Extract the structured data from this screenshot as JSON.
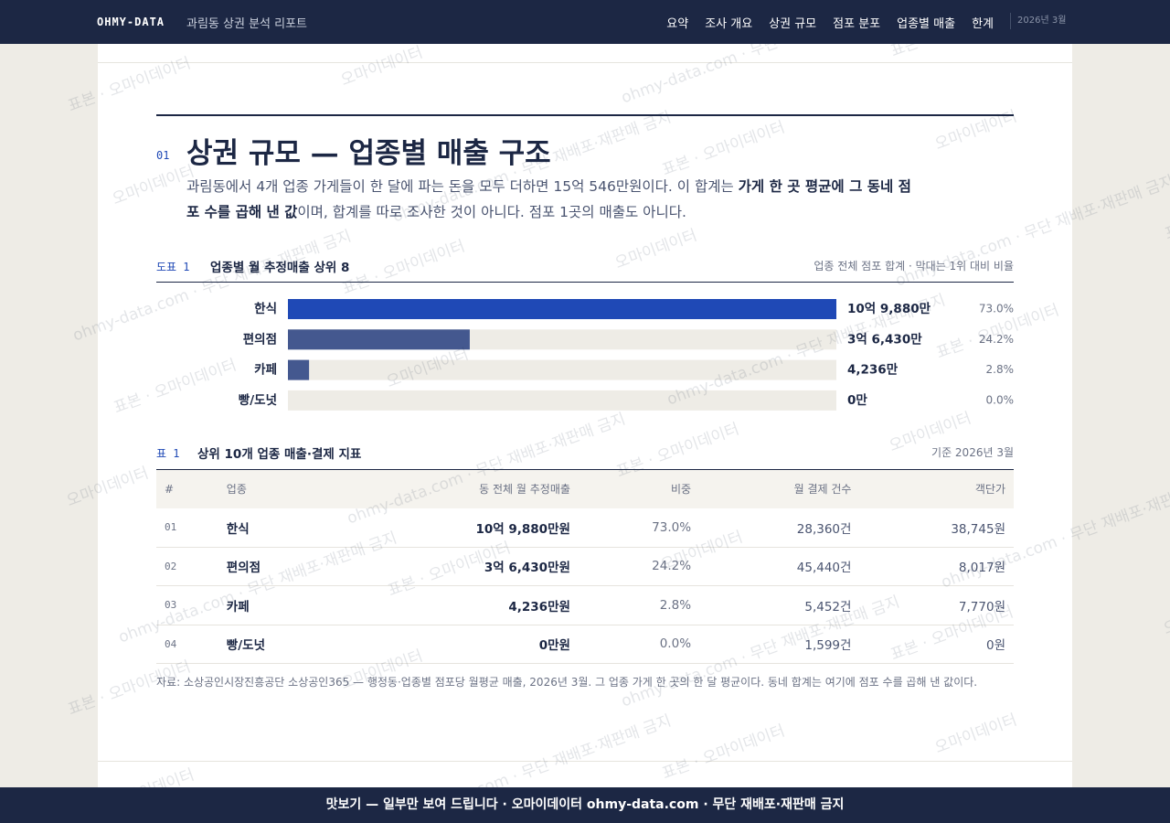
{
  "header": {
    "logo": "OHMY-DATA",
    "subtitle": "과림동 상권 분석 리포트",
    "nav": [
      "요약",
      "조사 개요",
      "상권 규모",
      "점포 분포",
      "업종별 매출",
      "한계"
    ],
    "date": "2026년 3월"
  },
  "section": {
    "number": "01",
    "title": "상권 규모 — 업종별 매출 구조",
    "paragraph": [
      {
        "text": "과림동에서 4개 업종 가게들이 한 달에 파는 돈을 모두 더하면 15억 546만원이다. 이 합계는 ",
        "bold": false
      },
      {
        "text": "가게 한 곳 평균에 그 동네 점포 수를 곱해 낸 값",
        "bold": true
      },
      {
        "text": "이며, 합계를 따로 조사한 것이 아니다. 점포 1곳의 매출도 아니다.",
        "bold": false
      }
    ]
  },
  "figure": {
    "label": "도표 1",
    "title": "업종별 월 추정매출 상위 8",
    "note": "업종 전체 점포 합계 · 막대는 1위 대비 비율",
    "rows": [
      {
        "name": "한식",
        "value": 109880,
        "value_label": "10억 9,880만",
        "share": 73.0,
        "share_label": "73.0%",
        "color": "#1f49b6"
      },
      {
        "name": "편의점",
        "value": 36430,
        "value_label": "3억 6,430만",
        "share": 24.2,
        "share_label": "24.2%",
        "color": "#44588f"
      },
      {
        "name": "카페",
        "value": 4236,
        "value_label": "4,236만",
        "share": 2.8,
        "share_label": "2.8%",
        "color": "#44588f"
      },
      {
        "name": "빵/도넛",
        "value": 0,
        "value_label": "0만",
        "share": 0.0,
        "share_label": "0.0%",
        "color": "#8a93a8"
      }
    ]
  },
  "table": {
    "label": "표 1",
    "title": "상위 10개 업종 매출·결제 지표",
    "note": "기준 2026년 3월",
    "columns": [
      "#",
      "업종",
      "동 전체 월 추정매출",
      "비중",
      "월 결제 건수",
      "객단가"
    ],
    "rows": [
      [
        "01",
        "한식",
        "10억 9,880만원",
        "73.0%",
        "28,360건",
        "38,745원"
      ],
      [
        "02",
        "편의점",
        "3억 6,430만원",
        "24.2%",
        "45,440건",
        "8,017원"
      ],
      [
        "03",
        "카페",
        "4,236만원",
        "2.8%",
        "5,452건",
        "7,770원"
      ],
      [
        "04",
        "빵/도넛",
        "0만원",
        "0.0%",
        "1,599건",
        "0원"
      ]
    ]
  },
  "source": "자료: 소상공인시장진흥공단 소상공인365 — 행정동·업종별 점포당 월평균 매출, 2026년 3월. 그 업종 가게 한 곳의 한 달 평균이다. 동네 합계는 여기에 점포 수를 곱해 낸 값이다.",
  "footer": "맛보기 — 일부만 보여 드립니다 · 오마이데이터 ohmy-data.com · 무단 재배포·재판매 금지",
  "watermarks": [
    "표본 · 오마이데이터",
    "오마이데이터",
    "ohmy-data.com · 무단 재배포·재판매 금지"
  ]
}
